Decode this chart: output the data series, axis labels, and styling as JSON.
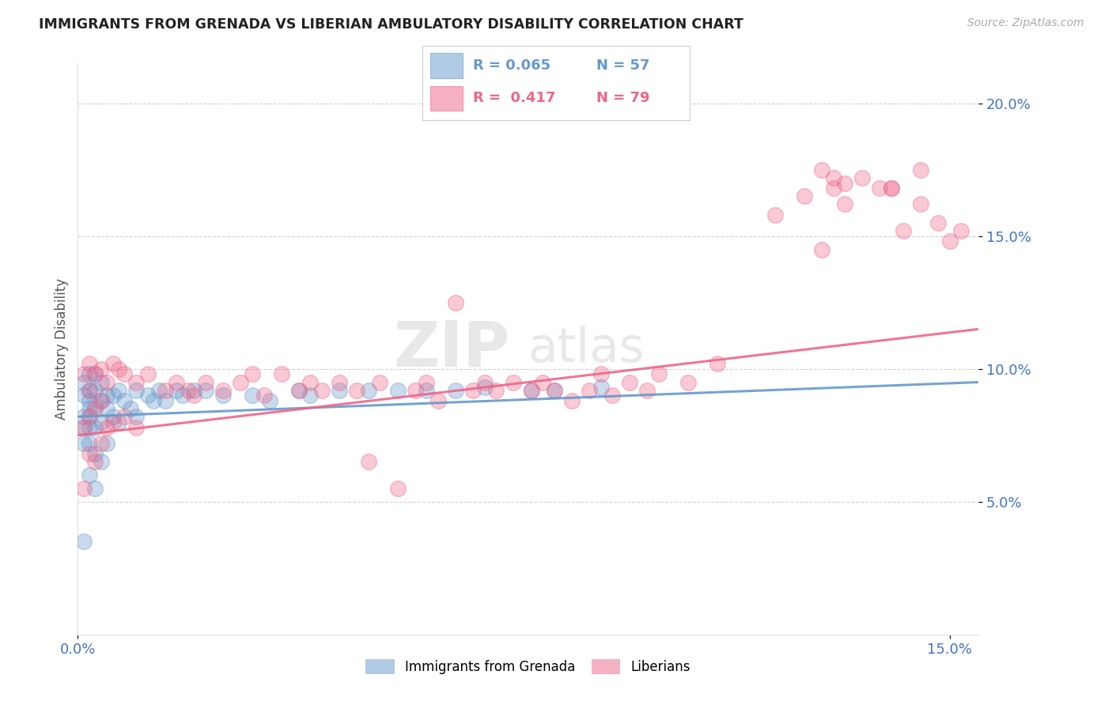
{
  "title": "IMMIGRANTS FROM GRENADA VS LIBERIAN AMBULATORY DISABILITY CORRELATION CHART",
  "source": "Source: ZipAtlas.com",
  "ylabel": "Ambulatory Disability",
  "xlim": [
    0.0,
    0.155
  ],
  "ylim": [
    0.0,
    0.215
  ],
  "ytick_vals": [
    0.05,
    0.1,
    0.15,
    0.2
  ],
  "xtick_vals": [
    0.0,
    0.15
  ],
  "legend_r1": "R = 0.065",
  "legend_n1": "N = 57",
  "legend_r2": "R =  0.417",
  "legend_n2": "N = 79",
  "blue_color": "#6699cc",
  "pink_color": "#ee6688",
  "watermark_zip": "ZIP",
  "watermark_atlas": "atlas",
  "title_color": "#222222",
  "axis_color": "#4472c4",
  "grid_color": "#cccccc",
  "source_color": "#aaaaaa",
  "blue_scatter_x": [
    0.001,
    0.001,
    0.001,
    0.001,
    0.001,
    0.001,
    0.002,
    0.002,
    0.002,
    0.002,
    0.002,
    0.002,
    0.002,
    0.002,
    0.003,
    0.003,
    0.003,
    0.003,
    0.003,
    0.003,
    0.004,
    0.004,
    0.004,
    0.004,
    0.005,
    0.005,
    0.005,
    0.006,
    0.006,
    0.007,
    0.007,
    0.008,
    0.009,
    0.01,
    0.01,
    0.012,
    0.013,
    0.014,
    0.015,
    0.017,
    0.018,
    0.02,
    0.022,
    0.025,
    0.03,
    0.033,
    0.038,
    0.04,
    0.045,
    0.05,
    0.055,
    0.06,
    0.065,
    0.07,
    0.078,
    0.082,
    0.09
  ],
  "blue_scatter_y": [
    0.095,
    0.09,
    0.082,
    0.078,
    0.072,
    0.035,
    0.098,
    0.092,
    0.088,
    0.085,
    0.082,
    0.078,
    0.072,
    0.06,
    0.098,
    0.092,
    0.086,
    0.078,
    0.068,
    0.055,
    0.095,
    0.088,
    0.08,
    0.065,
    0.09,
    0.085,
    0.072,
    0.09,
    0.082,
    0.092,
    0.08,
    0.088,
    0.085,
    0.092,
    0.082,
    0.09,
    0.088,
    0.092,
    0.088,
    0.092,
    0.09,
    0.092,
    0.092,
    0.09,
    0.09,
    0.088,
    0.092,
    0.09,
    0.092,
    0.092,
    0.092,
    0.092,
    0.092,
    0.093,
    0.092,
    0.092,
    0.093
  ],
  "pink_scatter_x": [
    0.001,
    0.001,
    0.001,
    0.002,
    0.002,
    0.002,
    0.002,
    0.003,
    0.003,
    0.003,
    0.004,
    0.004,
    0.004,
    0.005,
    0.005,
    0.006,
    0.006,
    0.007,
    0.008,
    0.008,
    0.01,
    0.01,
    0.012,
    0.015,
    0.017,
    0.019,
    0.02,
    0.022,
    0.025,
    0.028,
    0.03,
    0.032,
    0.035,
    0.038,
    0.04,
    0.042,
    0.045,
    0.048,
    0.05,
    0.052,
    0.055,
    0.058,
    0.06,
    0.062,
    0.065,
    0.068,
    0.07,
    0.072,
    0.075,
    0.078,
    0.08,
    0.082,
    0.085,
    0.088,
    0.09,
    0.092,
    0.095,
    0.098,
    0.1,
    0.105,
    0.11,
    0.12,
    0.125,
    0.128,
    0.13,
    0.132,
    0.135,
    0.138,
    0.14,
    0.142,
    0.145,
    0.148,
    0.15,
    0.152,
    0.128,
    0.132,
    0.13,
    0.14,
    0.145
  ],
  "pink_scatter_y": [
    0.098,
    0.078,
    0.055,
    0.102,
    0.092,
    0.082,
    0.068,
    0.098,
    0.085,
    0.065,
    0.1,
    0.088,
    0.072,
    0.095,
    0.078,
    0.102,
    0.08,
    0.1,
    0.098,
    0.082,
    0.095,
    0.078,
    0.098,
    0.092,
    0.095,
    0.092,
    0.09,
    0.095,
    0.092,
    0.095,
    0.098,
    0.09,
    0.098,
    0.092,
    0.095,
    0.092,
    0.095,
    0.092,
    0.065,
    0.095,
    0.055,
    0.092,
    0.095,
    0.088,
    0.125,
    0.092,
    0.095,
    0.092,
    0.095,
    0.092,
    0.095,
    0.092,
    0.088,
    0.092,
    0.098,
    0.09,
    0.095,
    0.092,
    0.098,
    0.095,
    0.102,
    0.158,
    0.165,
    0.145,
    0.168,
    0.162,
    0.172,
    0.168,
    0.168,
    0.152,
    0.162,
    0.155,
    0.148,
    0.152,
    0.175,
    0.17,
    0.172,
    0.168,
    0.175
  ],
  "blue_trend_x": [
    0.0,
    0.155
  ],
  "blue_trend_y": [
    0.082,
    0.095
  ],
  "pink_trend_x": [
    0.0,
    0.155
  ],
  "pink_trend_y": [
    0.075,
    0.115
  ]
}
